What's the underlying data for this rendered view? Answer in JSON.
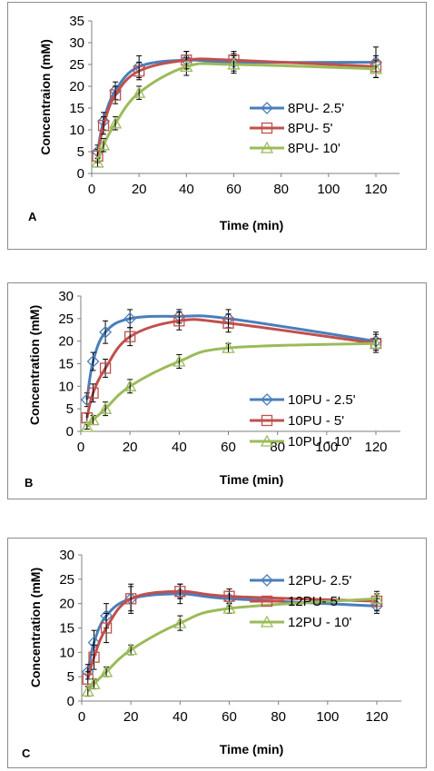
{
  "chart_data": [
    {
      "type": "line",
      "panel_label": "A",
      "xlabel": "Time (min)",
      "ylabel": "Concentraion (mM)",
      "xlim": [
        0,
        130
      ],
      "ylim": [
        0,
        35
      ],
      "xticks": [
        "0",
        "20",
        "40",
        "60",
        "80",
        "100",
        "120"
      ],
      "yticks": [
        "0",
        "5",
        "10",
        "15",
        "20",
        "25",
        "30",
        "35"
      ],
      "grid": false,
      "legend_position": "right",
      "x": [
        2.5,
        5,
        10,
        20,
        40,
        60,
        120
      ],
      "series": [
        {
          "name": "8PU- 2.5'",
          "color": "#4a7ebb",
          "marker": "diamond",
          "values": [
            5,
            12,
            19,
            24.5,
            26,
            25.5,
            25.5
          ],
          "errors": [
            1.5,
            2,
            2,
            2.5,
            2,
            2,
            3.5
          ]
        },
        {
          "name": "8PU- 5'",
          "color": "#c0504d",
          "marker": "square",
          "values": [
            4,
            11,
            18,
            23.5,
            26,
            26,
            24.5
          ],
          "errors": [
            1.5,
            2,
            2,
            2,
            2,
            2,
            2.5
          ]
        },
        {
          "name": "8PU- 10'",
          "color": "#9bbb59",
          "marker": "triangle",
          "values": [
            2.5,
            6.5,
            11.5,
            18.5,
            24.5,
            25,
            24
          ],
          "errors": [
            1,
            1.5,
            1.5,
            1.5,
            2,
            2,
            2
          ]
        }
      ]
    },
    {
      "type": "line",
      "panel_label": "B",
      "xlabel": "Time (min)",
      "ylabel": "Concentration (mM)",
      "xlim": [
        0,
        130
      ],
      "ylim": [
        0,
        30
      ],
      "xticks": [
        "0",
        "20",
        "40",
        "60",
        "80",
        "100",
        "120"
      ],
      "yticks": [
        "0",
        "5",
        "10",
        "15",
        "20",
        "25",
        "30"
      ],
      "grid": false,
      "legend_position": "right",
      "x": [
        2.5,
        5,
        10,
        20,
        40,
        60,
        120
      ],
      "series": [
        {
          "name": "10PU - 2.5'",
          "color": "#4a7ebb",
          "marker": "diamond",
          "values": [
            7,
            15.5,
            22,
            25,
            25.5,
            25,
            20
          ],
          "errors": [
            1.5,
            2,
            2.5,
            2,
            1.5,
            2,
            2
          ]
        },
        {
          "name": "10PU - 5'",
          "color": "#c0504d",
          "marker": "square",
          "values": [
            3,
            8.5,
            14,
            21,
            24.5,
            24,
            19.5
          ],
          "errors": [
            1,
            2,
            2,
            2,
            2,
            2,
            2
          ]
        },
        {
          "name": "10PU - 10'",
          "color": "#9bbb59",
          "marker": "triangle",
          "values": [
            1,
            2.5,
            5,
            10,
            15.5,
            18.5,
            19.5
          ],
          "errors": [
            0.5,
            1,
            1.5,
            1.5,
            1.5,
            1,
            1
          ]
        }
      ]
    },
    {
      "type": "line",
      "panel_label": "C",
      "xlabel": "Time (min)",
      "ylabel": "Concentration (mM)",
      "xlim": [
        0,
        130
      ],
      "ylim": [
        0,
        30
      ],
      "xticks": [
        "0",
        "20",
        "40",
        "60",
        "80",
        "100",
        "120"
      ],
      "yticks": [
        "0",
        "5",
        "10",
        "15",
        "20",
        "25",
        "30"
      ],
      "grid": false,
      "legend_position": "right",
      "x": [
        2.5,
        5,
        10,
        20,
        40,
        60,
        120
      ],
      "series": [
        {
          "name": "12PU- 2.5'",
          "color": "#4a7ebb",
          "marker": "diamond",
          "values": [
            6,
            12,
            17.5,
            21,
            22,
            21,
            19.5
          ],
          "errors": [
            1.5,
            2.5,
            2.5,
            2.5,
            2,
            1.5,
            1.5
          ]
        },
        {
          "name": "12PU-  5'",
          "color": "#c0504d",
          "marker": "square",
          "values": [
            4.5,
            9,
            15,
            21,
            22.5,
            21.5,
            20.5
          ],
          "errors": [
            1.5,
            2.5,
            3,
            3,
            1.5,
            1.5,
            2
          ]
        },
        {
          "name": "12PU - 10'",
          "color": "#9bbb59",
          "marker": "triangle",
          "values": [
            2,
            3.5,
            6,
            10.5,
            16,
            19,
            21
          ],
          "errors": [
            1,
            1,
            1,
            1,
            1.5,
            1,
            1
          ]
        }
      ]
    }
  ]
}
